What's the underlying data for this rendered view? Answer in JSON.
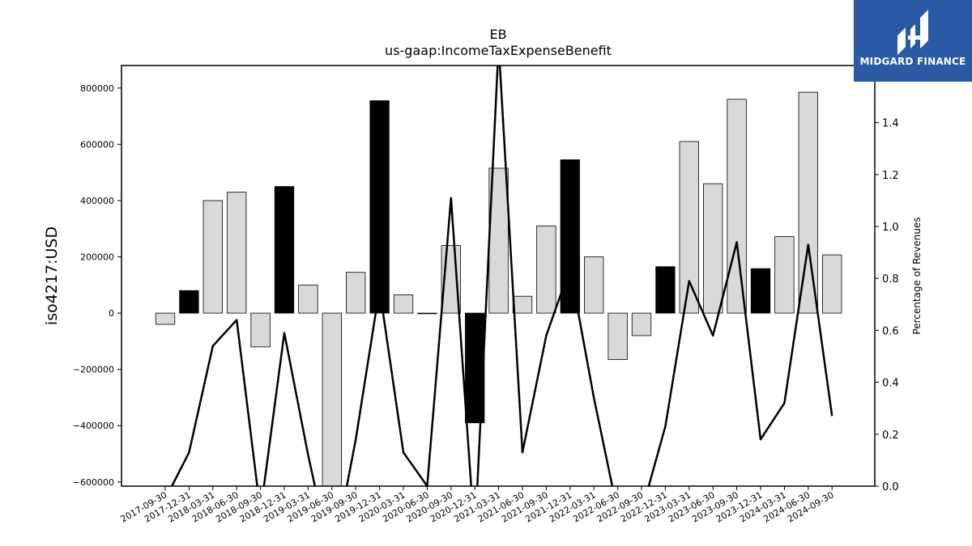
{
  "chart_data": {
    "type": "bar",
    "title": "EB",
    "subtitle": "us-gaap:IncomeTaxExpenseBenefit",
    "ylabel": "iso4217:USD",
    "y2label": "Percentage of Revenues",
    "ylim": [
      -615000,
      880000
    ],
    "y2lim": [
      0.0,
      1.62
    ],
    "yticks": [
      -600000,
      -400000,
      -200000,
      0,
      200000,
      400000,
      600000,
      800000
    ],
    "y2ticks": [
      0.0,
      0.2,
      0.4,
      0.6,
      0.8,
      1.0,
      1.2,
      1.4
    ],
    "categories": [
      "2017-09-30",
      "2017-12-31",
      "2018-03-31",
      "2018-06-30",
      "2018-09-30",
      "2018-12-31",
      "2019-03-31",
      "2019-06-30",
      "2019-09-30",
      "2019-12-31",
      "2020-03-31",
      "2020-06-30",
      "2020-09-30",
      "2020-12-31",
      "2021-03-31",
      "2021-06-30",
      "2021-09-30",
      "2021-12-31",
      "2022-03-31",
      "2022-06-30",
      "2022-09-30",
      "2022-12-31",
      "2023-03-31",
      "2023-06-30",
      "2023-09-30",
      "2023-12-31",
      "2024-03-31",
      "2024-06-30",
      "2024-09-30"
    ],
    "series": [
      {
        "type": "bar",
        "values": [
          -40000,
          80000,
          400000,
          430000,
          -120000,
          450000,
          100000,
          -640000,
          145000,
          755000,
          65000,
          -2000,
          240000,
          -390000,
          515000,
          60000,
          310000,
          545000,
          200000,
          -165000,
          -80000,
          165000,
          610000,
          460000,
          760000,
          158000,
          272000,
          785000,
          207000
        ],
        "highlight": [
          false,
          true,
          false,
          false,
          false,
          true,
          false,
          false,
          false,
          true,
          false,
          false,
          false,
          true,
          false,
          false,
          false,
          true,
          false,
          false,
          false,
          true,
          false,
          false,
          false,
          true,
          false,
          false,
          false
        ],
        "colors": {
          "normal": "#d9d9d9",
          "highlight": "#000000"
        }
      },
      {
        "type": "line",
        "axis": "right",
        "color": "#000000",
        "values": [
          -0.05,
          0.13,
          0.54,
          0.64,
          -0.1,
          0.59,
          0.12,
          -0.3,
          0.18,
          0.76,
          0.13,
          0.0,
          1.11,
          -0.2,
          1.7,
          0.13,
          0.58,
          0.84,
          0.34,
          -0.1,
          -0.1,
          0.23,
          0.79,
          0.58,
          0.94,
          0.18,
          0.32,
          0.93,
          0.27
        ]
      }
    ],
    "grid": false,
    "legend": "none"
  },
  "logo": {
    "text": "MIDGARD FINANCE",
    "icon": "midgard-logo-icon",
    "background": "#2a5aa6"
  }
}
